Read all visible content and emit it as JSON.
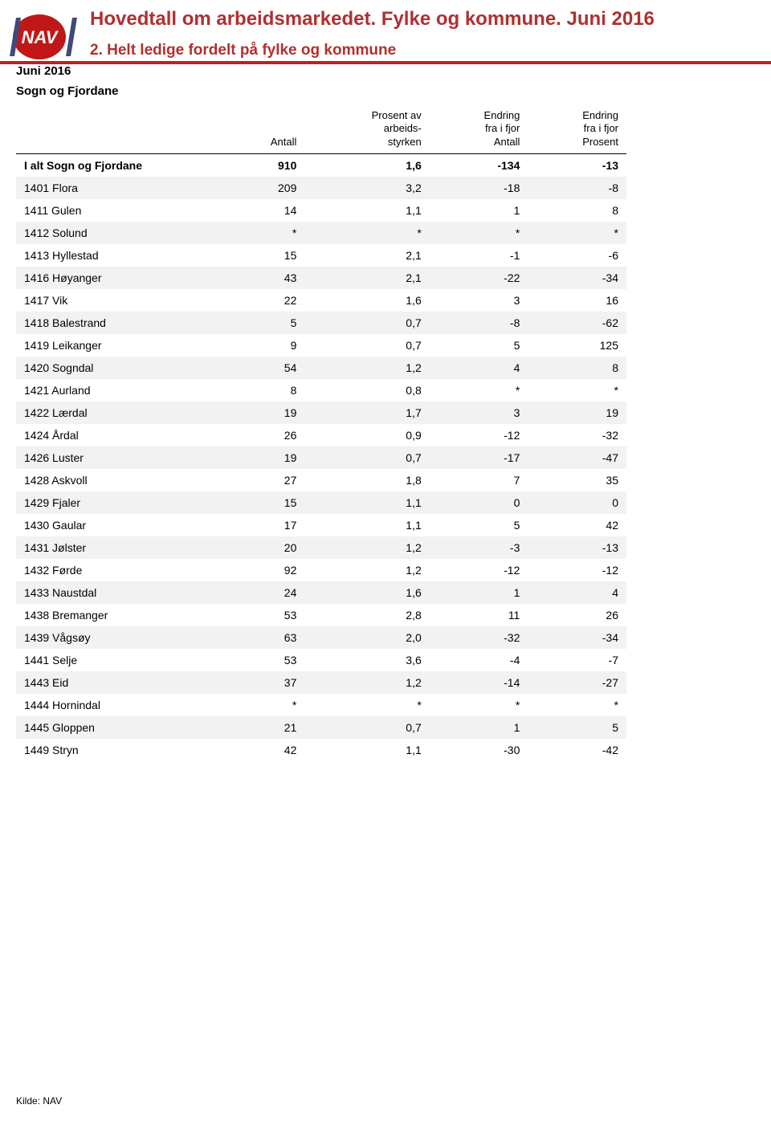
{
  "header": {
    "title": "Hovedtall om arbeidsmarkedet. Fylke og kommune. Juni 2016",
    "subtitle": "2. Helt ledige fordelt på fylke og kommune"
  },
  "logo": {
    "bg": "#c01818",
    "slash": "#404a7a",
    "text": "NAV"
  },
  "period_label": "Juni 2016",
  "region_label": "Sogn og Fjordane",
  "columns": [
    {
      "key": "label",
      "lines": [
        ""
      ]
    },
    {
      "key": "antall",
      "lines": [
        "Antall"
      ]
    },
    {
      "key": "prosent_av",
      "lines": [
        "Prosent av",
        "arbeids-",
        "styrken"
      ]
    },
    {
      "key": "endr_antall",
      "lines": [
        "Endring",
        "fra i fjor",
        "Antall"
      ]
    },
    {
      "key": "endr_prosent",
      "lines": [
        "Endring",
        "fra i fjor",
        "Prosent"
      ]
    }
  ],
  "total_row": {
    "label": "I alt Sogn og Fjordane",
    "antall": "910",
    "prosent_av": "1,6",
    "endr_antall": "-134",
    "endr_prosent": "-13"
  },
  "rows": [
    {
      "label": "1401 Flora",
      "antall": "209",
      "prosent_av": "3,2",
      "endr_antall": "-18",
      "endr_prosent": "-8"
    },
    {
      "label": "1411 Gulen",
      "antall": "14",
      "prosent_av": "1,1",
      "endr_antall": "1",
      "endr_prosent": "8"
    },
    {
      "label": "1412 Solund",
      "antall": "*",
      "prosent_av": "*",
      "endr_antall": "*",
      "endr_prosent": "*"
    },
    {
      "label": "1413 Hyllestad",
      "antall": "15",
      "prosent_av": "2,1",
      "endr_antall": "-1",
      "endr_prosent": "-6"
    },
    {
      "label": "1416 Høyanger",
      "antall": "43",
      "prosent_av": "2,1",
      "endr_antall": "-22",
      "endr_prosent": "-34"
    },
    {
      "label": "1417 Vik",
      "antall": "22",
      "prosent_av": "1,6",
      "endr_antall": "3",
      "endr_prosent": "16"
    },
    {
      "label": "1418 Balestrand",
      "antall": "5",
      "prosent_av": "0,7",
      "endr_antall": "-8",
      "endr_prosent": "-62"
    },
    {
      "label": "1419 Leikanger",
      "antall": "9",
      "prosent_av": "0,7",
      "endr_antall": "5",
      "endr_prosent": "125"
    },
    {
      "label": "1420 Sogndal",
      "antall": "54",
      "prosent_av": "1,2",
      "endr_antall": "4",
      "endr_prosent": "8"
    },
    {
      "label": "1421 Aurland",
      "antall": "8",
      "prosent_av": "0,8",
      "endr_antall": "*",
      "endr_prosent": "*"
    },
    {
      "label": "1422 Lærdal",
      "antall": "19",
      "prosent_av": "1,7",
      "endr_antall": "3",
      "endr_prosent": "19"
    },
    {
      "label": "1424 Årdal",
      "antall": "26",
      "prosent_av": "0,9",
      "endr_antall": "-12",
      "endr_prosent": "-32"
    },
    {
      "label": "1426 Luster",
      "antall": "19",
      "prosent_av": "0,7",
      "endr_antall": "-17",
      "endr_prosent": "-47"
    },
    {
      "label": "1428 Askvoll",
      "antall": "27",
      "prosent_av": "1,8",
      "endr_antall": "7",
      "endr_prosent": "35"
    },
    {
      "label": "1429 Fjaler",
      "antall": "15",
      "prosent_av": "1,1",
      "endr_antall": "0",
      "endr_prosent": "0"
    },
    {
      "label": "1430 Gaular",
      "antall": "17",
      "prosent_av": "1,1",
      "endr_antall": "5",
      "endr_prosent": "42"
    },
    {
      "label": "1431 Jølster",
      "antall": "20",
      "prosent_av": "1,2",
      "endr_antall": "-3",
      "endr_prosent": "-13"
    },
    {
      "label": "1432 Førde",
      "antall": "92",
      "prosent_av": "1,2",
      "endr_antall": "-12",
      "endr_prosent": "-12"
    },
    {
      "label": "1433 Naustdal",
      "antall": "24",
      "prosent_av": "1,6",
      "endr_antall": "1",
      "endr_prosent": "4"
    },
    {
      "label": "1438 Bremanger",
      "antall": "53",
      "prosent_av": "2,8",
      "endr_antall": "11",
      "endr_prosent": "26"
    },
    {
      "label": "1439 Vågsøy",
      "antall": "63",
      "prosent_av": "2,0",
      "endr_antall": "-32",
      "endr_prosent": "-34"
    },
    {
      "label": "1441 Selje",
      "antall": "53",
      "prosent_av": "3,6",
      "endr_antall": "-4",
      "endr_prosent": "-7"
    },
    {
      "label": "1443 Eid",
      "antall": "37",
      "prosent_av": "1,2",
      "endr_antall": "-14",
      "endr_prosent": "-27"
    },
    {
      "label": "1444 Hornindal",
      "antall": "*",
      "prosent_av": "*",
      "endr_antall": "*",
      "endr_prosent": "*"
    },
    {
      "label": "1445 Gloppen",
      "antall": "21",
      "prosent_av": "0,7",
      "endr_antall": "1",
      "endr_prosent": "5"
    },
    {
      "label": "1449 Stryn",
      "antall": "42",
      "prosent_av": "1,1",
      "endr_antall": "-30",
      "endr_prosent": "-42"
    }
  ],
  "footer": "Kilde: NAV",
  "style": {
    "shaded_bg": "#f2f2f2",
    "header_color": "#b03030",
    "rule_color": "#c02020"
  }
}
